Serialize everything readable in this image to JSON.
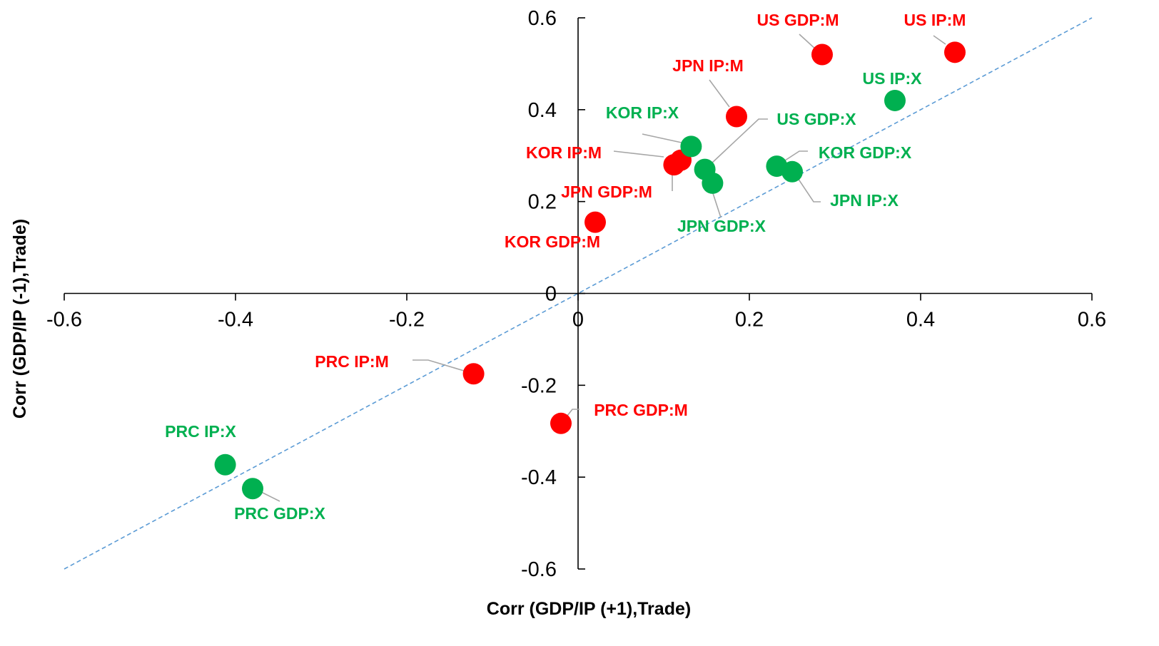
{
  "chart_data": {
    "type": "scatter",
    "xlabel": "Corr (GDP/IP (+1),Trade)",
    "ylabel": "Corr (GDP/IP (-1),Trade)",
    "xlim": [
      -0.6,
      0.6
    ],
    "ylim": [
      -0.6,
      0.6
    ],
    "xticks": [
      "-0.6",
      "-0.4",
      "-0.2",
      "0",
      "0.2",
      "0.4",
      "0.6"
    ],
    "yticks": [
      "-0.6",
      "-0.4",
      "-0.2",
      "0",
      "0.2",
      "0.4",
      "0.6"
    ],
    "grid": false,
    "reference_line": {
      "from": [
        -0.6,
        -0.6
      ],
      "to": [
        0.6,
        0.6
      ],
      "style": "dashed",
      "color": "#5b9bd5"
    },
    "colors": {
      "M": "#ff0000",
      "X": "#00b050",
      "label_M": "#ff0000",
      "label_X": "#00b050",
      "leader": "#a6a6a6"
    },
    "points": [
      {
        "label": "US GDP:M",
        "group": "M",
        "x": 0.285,
        "y": 0.52
      },
      {
        "label": "US IP:M",
        "group": "M",
        "x": 0.44,
        "y": 0.525
      },
      {
        "label": "JPN IP:M",
        "group": "M",
        "x": 0.185,
        "y": 0.385
      },
      {
        "label": "KOR IP:M",
        "group": "M",
        "x": 0.112,
        "y": 0.28
      },
      {
        "label": "KOR GDP:M",
        "group": "M",
        "x": 0.02,
        "y": 0.155
      },
      {
        "label": "PRC IP:M",
        "group": "M",
        "x": -0.122,
        "y": -0.175
      },
      {
        "label": "PRC GDP:M",
        "group": "M",
        "x": -0.02,
        "y": -0.283
      },
      {
        "label": "JPN GDP:M",
        "group": "M",
        "x": 0.12,
        "y": 0.29
      },
      {
        "label": "US IP:X",
        "group": "X",
        "x": 0.37,
        "y": 0.42
      },
      {
        "label": "KOR IP:X",
        "group": "X",
        "x": 0.132,
        "y": 0.32
      },
      {
        "label": "US GDP:X",
        "group": "X",
        "x": 0.148,
        "y": 0.27
      },
      {
        "label": "JPN GDP:X",
        "group": "X",
        "x": 0.157,
        "y": 0.24
      },
      {
        "label": "KOR GDP:X",
        "group": "X",
        "x": 0.232,
        "y": 0.277
      },
      {
        "label": "JPN IP:X",
        "group": "X",
        "x": 0.25,
        "y": 0.265
      },
      {
        "label": "PRC IP:X",
        "group": "X",
        "x": -0.412,
        "y": -0.373
      },
      {
        "label": "PRC GDP:X",
        "group": "X",
        "x": -0.38,
        "y": -0.425
      }
    ]
  }
}
